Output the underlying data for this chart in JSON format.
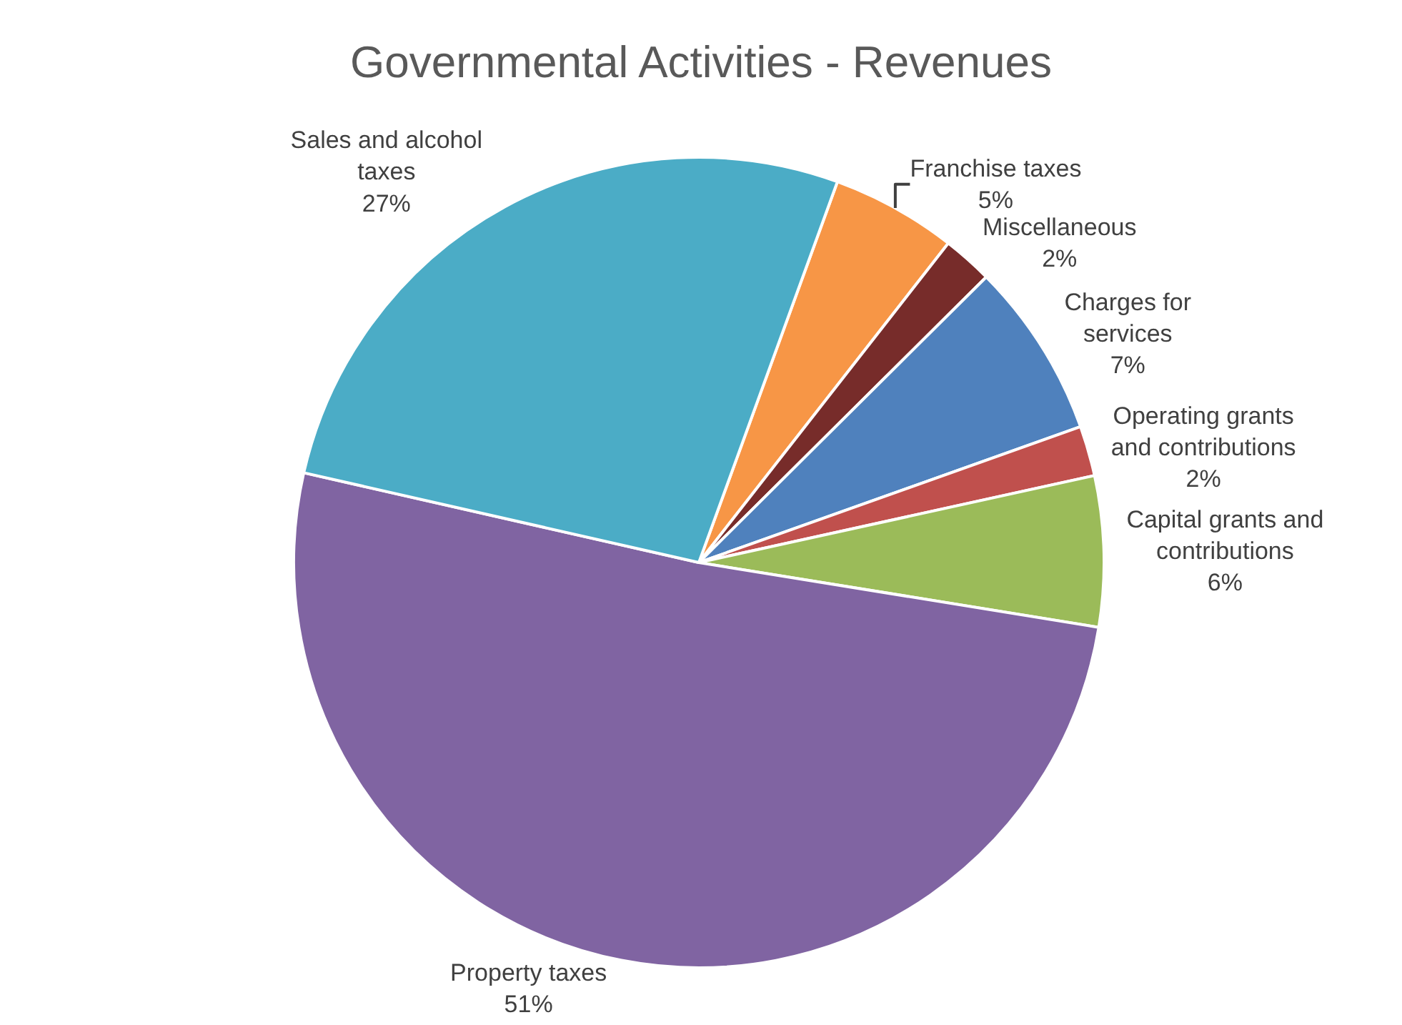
{
  "chart_data": {
    "type": "pie",
    "title": "Governmental Activities - Revenues",
    "categories": [
      "Franchise taxes",
      "Miscellaneous",
      "Charges for services",
      "Operating grants and contributions",
      "Capital grants and contributions",
      "Property taxes",
      "Sales and alcohol taxes"
    ],
    "values": [
      5,
      2,
      7,
      2,
      6,
      51,
      27
    ],
    "value_labels": [
      "5%",
      "2%",
      "7%",
      "2%",
      "6%",
      "51%",
      "27%"
    ],
    "colors": [
      "#f79646",
      "#772c2a",
      "#4f81bd",
      "#c0504d",
      "#9bbb59",
      "#8064a2",
      "#4bacc6"
    ],
    "legend": false
  }
}
